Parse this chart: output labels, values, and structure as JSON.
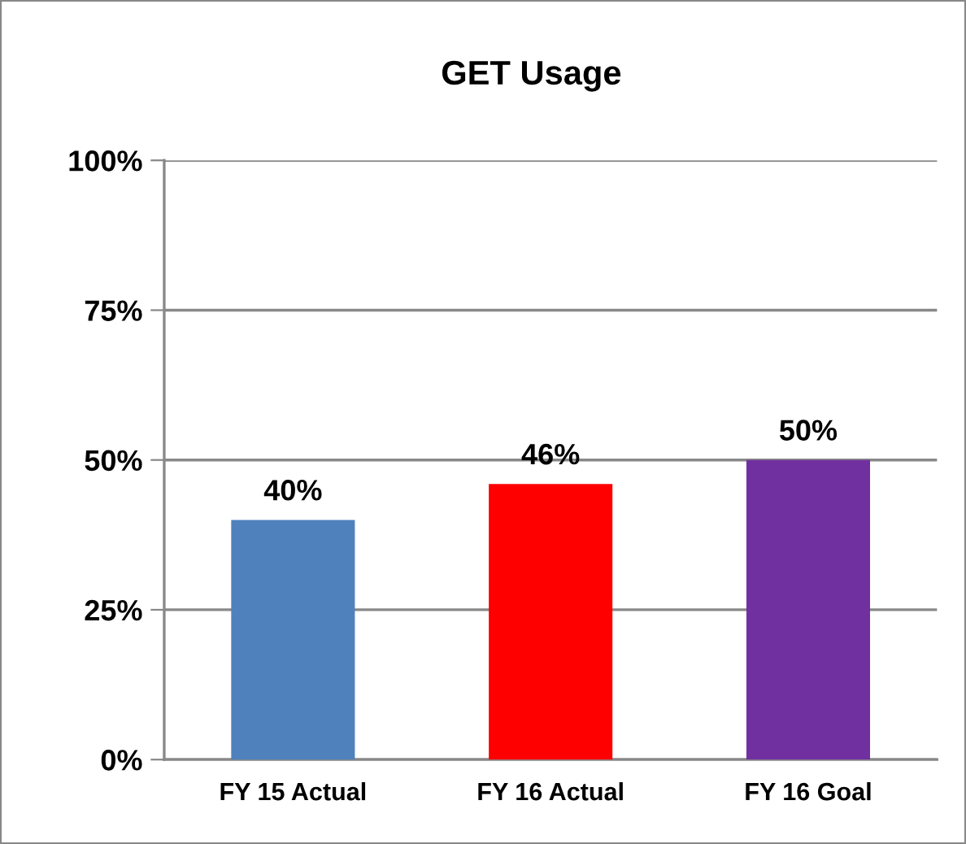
{
  "chart_data": {
    "type": "bar",
    "title": "GET Usage",
    "categories": [
      "FY 15 Actual",
      "FY 16 Actual",
      "FY 16 Goal"
    ],
    "values": [
      40,
      46,
      50
    ],
    "colors": [
      "#4f81bd",
      "#ff0000",
      "#7030a0"
    ],
    "value_labels": [
      "40%",
      "46%",
      "50%"
    ],
    "ylim": [
      0,
      100
    ],
    "yticks": [
      {
        "value": 0,
        "label": "0%"
      },
      {
        "value": 25,
        "label": "25%"
      },
      {
        "value": 50,
        "label": "50%"
      },
      {
        "value": 75,
        "label": "75%"
      },
      {
        "value": 100,
        "label": "100%"
      }
    ],
    "grid": "y"
  }
}
